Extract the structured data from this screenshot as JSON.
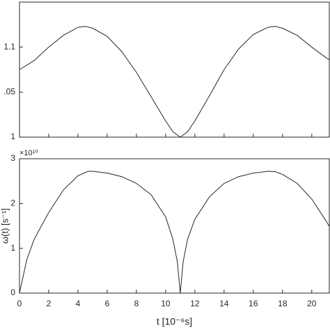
{
  "chart_data": [
    {
      "type": "line",
      "x": [
        0,
        1,
        2,
        3,
        4,
        4.5,
        5,
        6,
        7,
        8,
        9,
        10,
        10.5,
        11,
        11.5,
        12,
        13,
        14,
        15,
        16,
        17,
        17.5,
        18,
        19,
        20,
        21,
        21.2
      ],
      "values": [
        1.075,
        1.085,
        1.1,
        1.113,
        1.122,
        1.123,
        1.121,
        1.112,
        1.095,
        1.072,
        1.045,
        1.018,
        1.006,
        1.0,
        1.006,
        1.018,
        1.046,
        1.075,
        1.098,
        1.114,
        1.122,
        1.123,
        1.121,
        1.113,
        1.1,
        1.088,
        1.086
      ],
      "color": "#262626",
      "xlim": [
        0,
        21.2
      ],
      "xticks": [
        0,
        2,
        4,
        6,
        8,
        10,
        12,
        14,
        16,
        18,
        20
      ],
      "ylim": [
        1,
        1.15
      ],
      "yticks": [
        1,
        {
          "value": 1.05,
          "label": ".05"
        },
        1.1
      ]
    },
    {
      "type": "line",
      "x": [
        0,
        0.5,
        1,
        2,
        3,
        4,
        4.7,
        5,
        6,
        7,
        8,
        9,
        10,
        10.5,
        10.8,
        11,
        11.2,
        11.5,
        12,
        13,
        14,
        15,
        16,
        17,
        17.5,
        18,
        19,
        20,
        21,
        21.2
      ],
      "values": [
        0,
        0.75,
        1.2,
        1.8,
        2.3,
        2.62,
        2.72,
        2.72,
        2.68,
        2.6,
        2.45,
        2.2,
        1.7,
        1.2,
        0.7,
        0,
        0.7,
        1.2,
        1.65,
        2.15,
        2.45,
        2.6,
        2.68,
        2.72,
        2.71,
        2.65,
        2.45,
        2.1,
        1.6,
        1.49
      ],
      "color": "#262626",
      "xlabel": "t [10⁻⁶s]",
      "ylabel": "ω(t) [s⁻¹]",
      "y_exponent": "×10¹⁰",
      "xlim": [
        0,
        21.2
      ],
      "xticks": [
        0,
        2,
        4,
        6,
        8,
        10,
        12,
        14,
        16,
        18,
        20
      ],
      "ylim": [
        0,
        3
      ],
      "yticks": [
        0,
        1,
        2,
        3
      ]
    }
  ]
}
